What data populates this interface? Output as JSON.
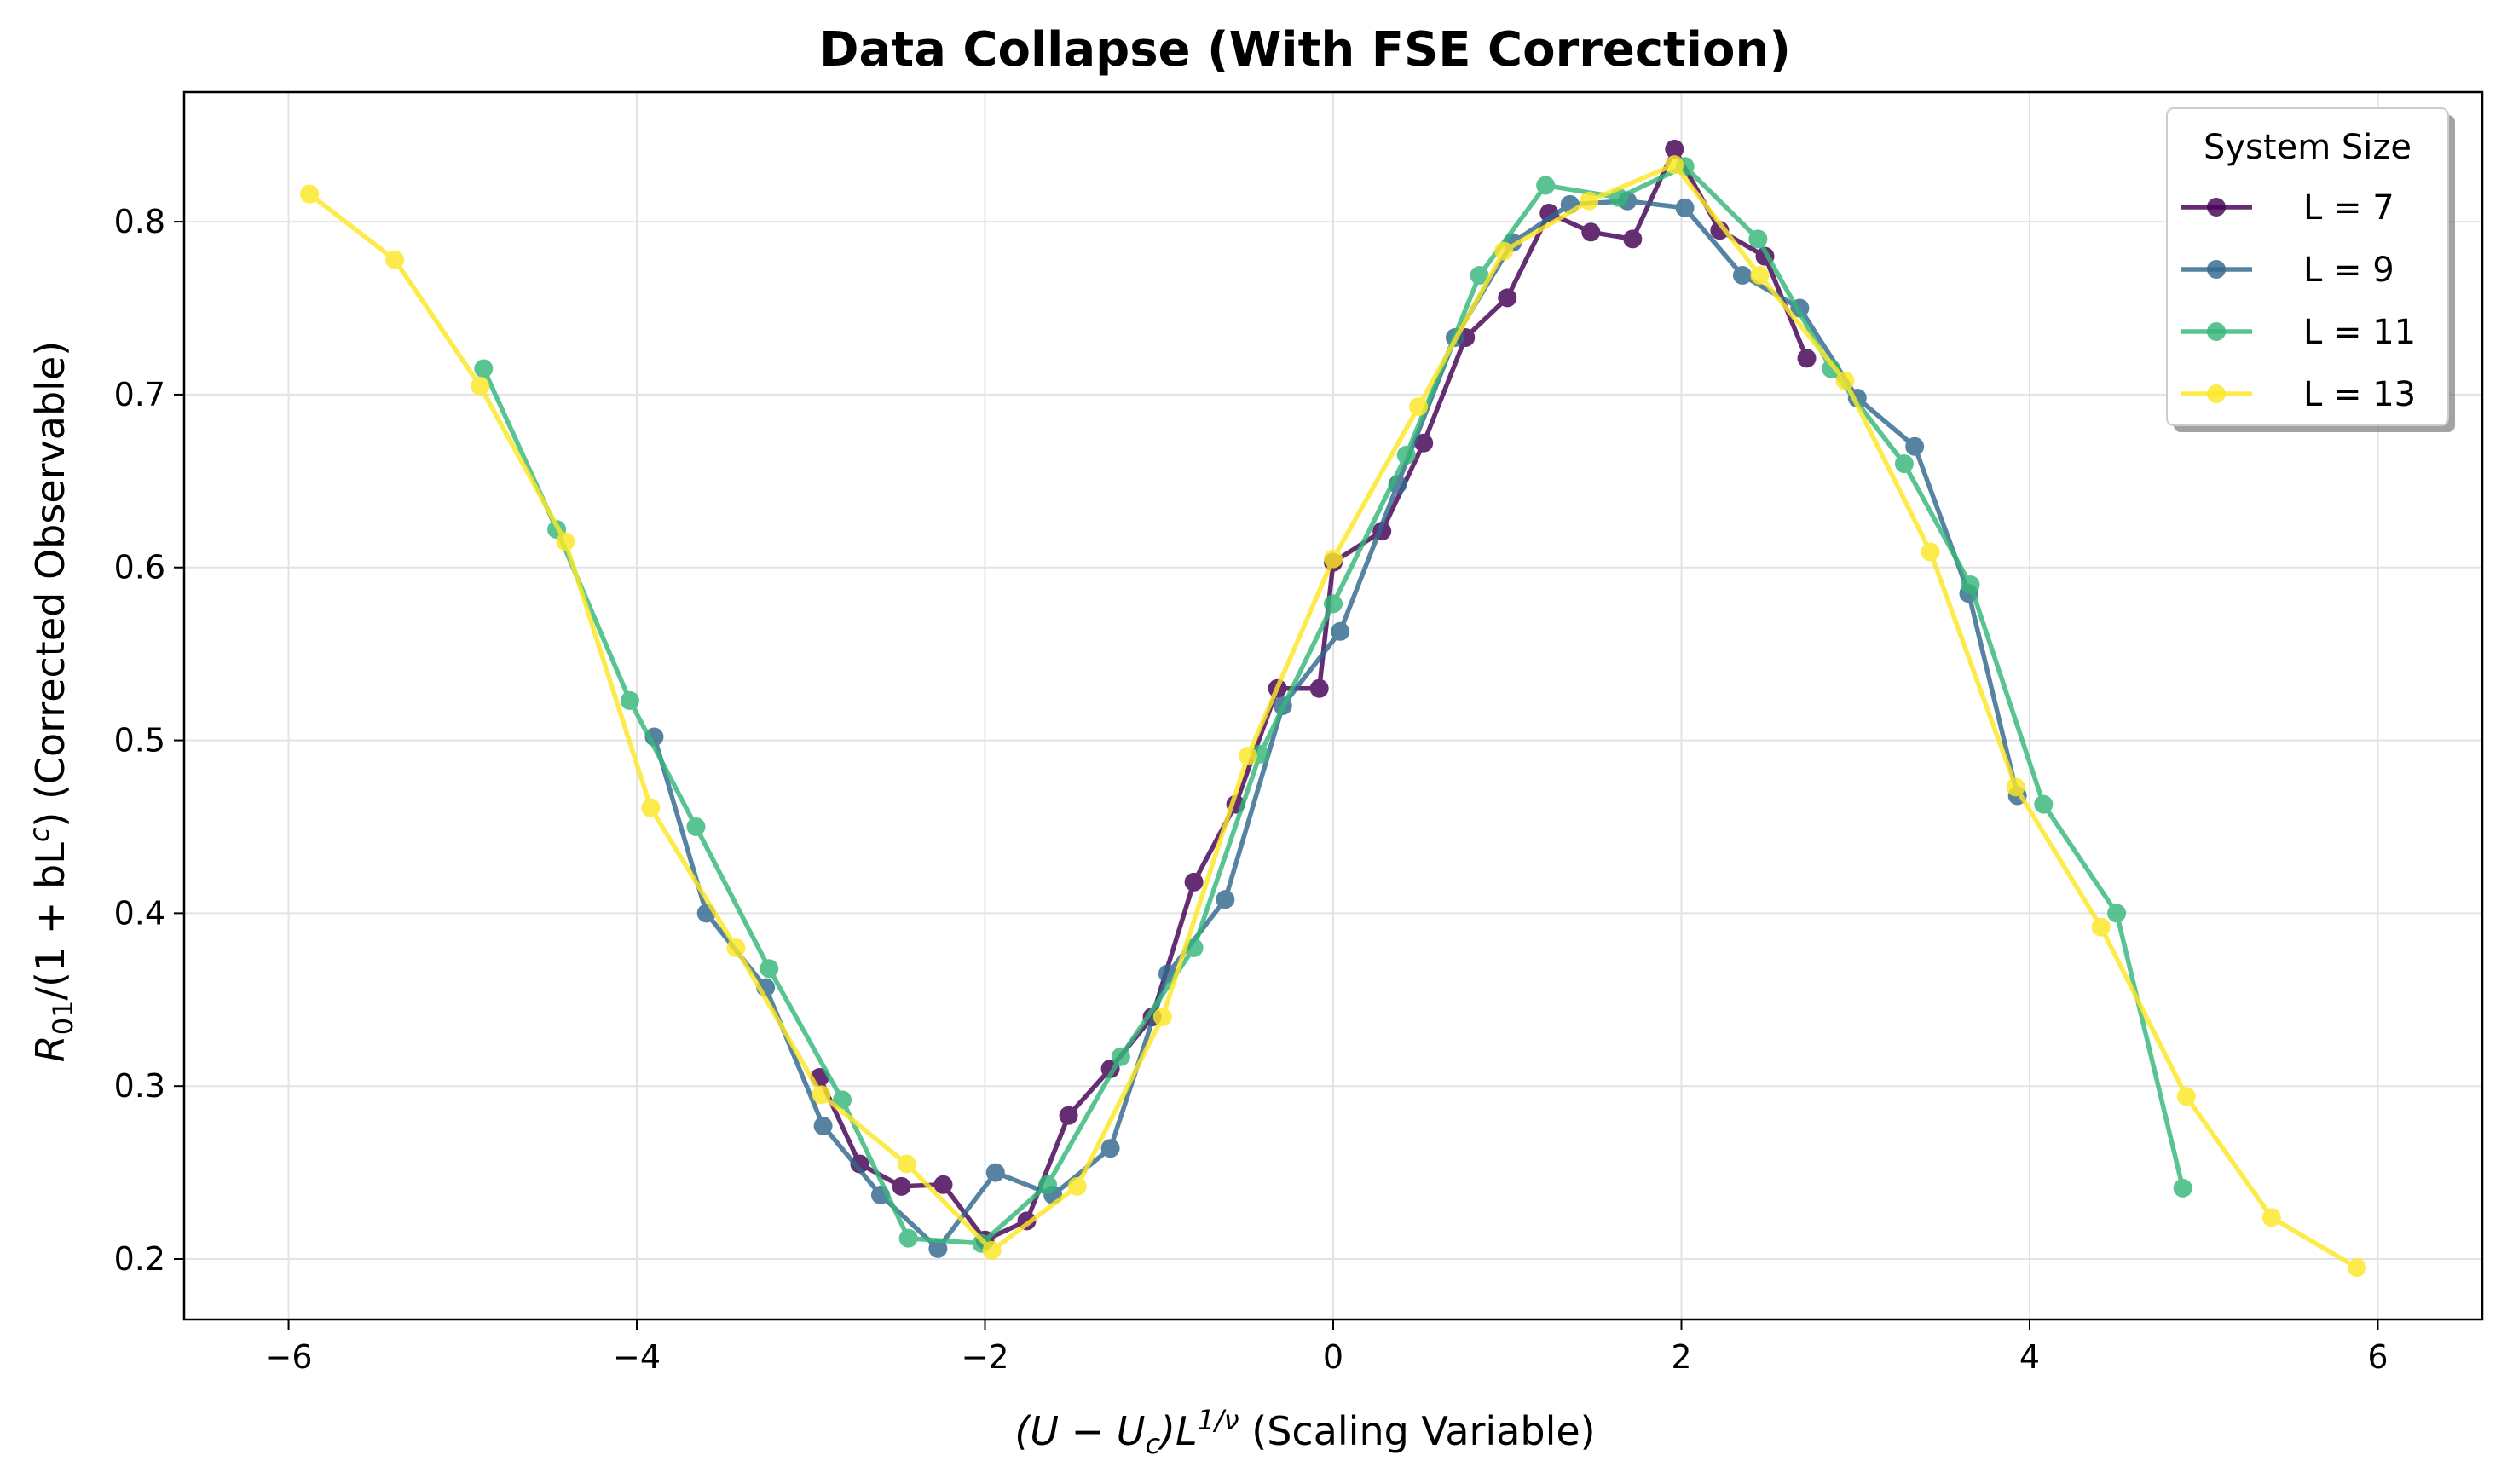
{
  "chart_data": {
    "type": "line",
    "title": "Data Collapse (With FSE Correction)",
    "xlabel": {
      "prefix": "(U − U",
      "sub": "c",
      "mid": ")L",
      "sup": "1/ν",
      "suffix": " (Scaling Variable)"
    },
    "ylabel": {
      "r": "R",
      "sub": "01",
      "mid": "/(1 + bL",
      "sup": "c",
      "suffix": ") (Corrected Observable)"
    },
    "xlim": [
      -6.6,
      6.6
    ],
    "ylim": [
      0.165,
      0.875
    ],
    "xticks": [
      -6,
      -4,
      -2,
      0,
      2,
      4,
      6
    ],
    "xtick_labels": [
      "−6",
      "−4",
      "−2",
      "0",
      "2",
      "4",
      "6"
    ],
    "yticks": [
      0.2,
      0.3,
      0.4,
      0.5,
      0.6,
      0.7,
      0.8
    ],
    "ytick_labels": [
      "0.2",
      "0.3",
      "0.4",
      "0.5",
      "0.6",
      "0.7",
      "0.8"
    ],
    "grid": true,
    "legend": {
      "title": "System Size",
      "placement": "top-right"
    },
    "series": [
      {
        "name": "L = 7",
        "color": "#440154",
        "x": [
          -2.95,
          -2.72,
          -2.48,
          -2.24,
          -2.0,
          -1.76,
          -1.52,
          -1.28,
          -1.04,
          -0.8,
          -0.56,
          -0.32,
          -0.08,
          0.0,
          0.28,
          0.52,
          0.76,
          1.0,
          1.24,
          1.48,
          1.72,
          1.96,
          2.22,
          2.48,
          2.72
        ],
        "y": [
          0.305,
          0.255,
          0.242,
          0.243,
          0.211,
          0.222,
          0.283,
          0.31,
          0.34,
          0.418,
          0.463,
          0.53,
          0.53,
          0.603,
          0.621,
          0.672,
          0.733,
          0.756,
          0.805,
          0.794,
          0.79,
          0.842,
          0.795,
          0.78,
          0.721
        ]
      },
      {
        "name": "L = 9",
        "color": "#31688e",
        "x": [
          -3.9,
          -3.6,
          -3.26,
          -2.93,
          -2.6,
          -2.27,
          -1.94,
          -1.61,
          -1.28,
          -0.95,
          -0.62,
          -0.29,
          0.04,
          0.37,
          0.7,
          1.03,
          1.36,
          1.69,
          2.02,
          2.35,
          2.68,
          3.01,
          3.34,
          3.65,
          3.93
        ],
        "y": [
          0.502,
          0.4,
          0.357,
          0.277,
          0.237,
          0.206,
          0.25,
          0.237,
          0.264,
          0.365,
          0.408,
          0.52,
          0.563,
          0.648,
          0.733,
          0.788,
          0.81,
          0.812,
          0.808,
          0.769,
          0.75,
          0.698,
          0.67,
          0.585,
          0.468
        ]
      },
      {
        "name": "L = 11",
        "color": "#35b779",
        "x": [
          -4.88,
          -4.46,
          -4.04,
          -3.66,
          -3.24,
          -2.82,
          -2.44,
          -2.02,
          -1.64,
          -1.22,
          -0.8,
          -0.42,
          0.0,
          0.42,
          0.84,
          1.22,
          1.64,
          2.02,
          2.44,
          2.86,
          3.28,
          3.66,
          4.08,
          4.5,
          4.88
        ],
        "y": [
          0.715,
          0.622,
          0.523,
          0.45,
          0.368,
          0.292,
          0.212,
          0.209,
          0.243,
          0.317,
          0.38,
          0.492,
          0.579,
          0.665,
          0.769,
          0.821,
          0.814,
          0.832,
          0.79,
          0.715,
          0.66,
          0.59,
          0.463,
          0.4,
          0.241
        ]
      },
      {
        "name": "L = 13",
        "color": "#fde725",
        "x": [
          -5.88,
          -5.39,
          -4.9,
          -4.41,
          -3.92,
          -3.43,
          -2.94,
          -2.45,
          -1.96,
          -1.47,
          -0.98,
          -0.49,
          0.0,
          0.49,
          0.98,
          1.47,
          1.96,
          2.45,
          2.94,
          3.43,
          3.92,
          4.41,
          4.9,
          5.39,
          5.88
        ],
        "y": [
          0.816,
          0.778,
          0.705,
          0.615,
          0.461,
          0.38,
          0.295,
          0.255,
          0.205,
          0.242,
          0.34,
          0.491,
          0.605,
          0.693,
          0.783,
          0.812,
          0.833,
          0.769,
          0.708,
          0.609,
          0.473,
          0.392,
          0.294,
          0.224,
          0.195
        ]
      }
    ]
  }
}
